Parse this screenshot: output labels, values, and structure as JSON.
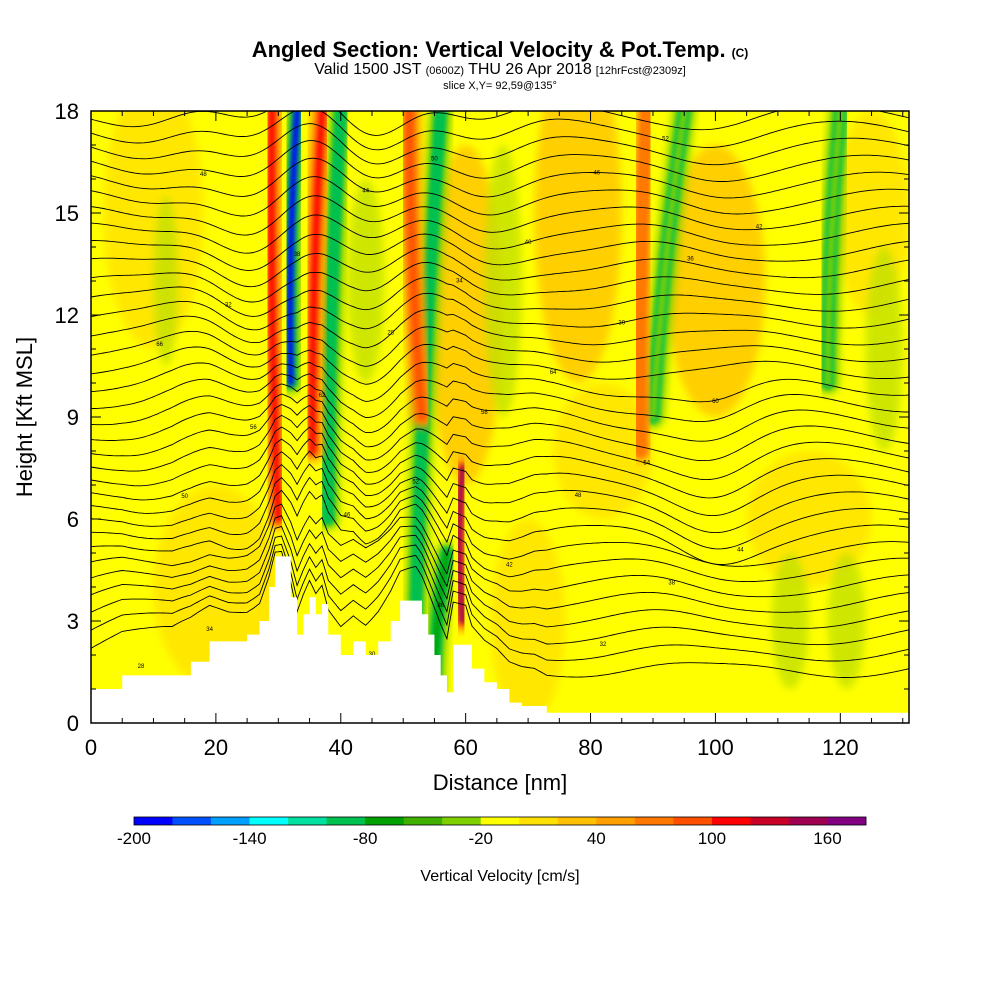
{
  "header": {
    "title": "Angled Section: Vertical Velocity & Pot.Temp.",
    "title_suffix": "(C)",
    "valid_prefix": "Valid 1500 JST",
    "valid_zulu": "(0600Z)",
    "valid_date": "THU 26 Apr 2018",
    "forecast_tag": "[12hrFcst@2309z]",
    "slice_info": "slice X,Y= 92,59@135°"
  },
  "chart_data": {
    "type": "heatmap",
    "title": "Angled Section: Vertical Velocity & Pot.Temp.",
    "xlabel": "Distance [nm]",
    "ylabel": "Height [Kft MSL]",
    "xlim": [
      0,
      131
    ],
    "ylim": [
      0,
      18
    ],
    "x_ticks": [
      0,
      20,
      40,
      60,
      80,
      100,
      120
    ],
    "y_ticks": [
      0,
      3,
      6,
      9,
      12,
      15,
      18
    ],
    "grid": false,
    "background_field": "yellow (~0 cm/s)",
    "colorbar": {
      "label": "Vertical Velocity [cm/s]",
      "min": -200,
      "max": 180,
      "step": 20,
      "tick_labels": [
        -200,
        -140,
        -80,
        -20,
        40,
        100,
        160
      ],
      "colors": [
        "#0000ff",
        "#0050ff",
        "#00a0ff",
        "#00ffff",
        "#00e0a0",
        "#00c050",
        "#00a000",
        "#40b000",
        "#80d000",
        "#ffff00",
        "#ffe000",
        "#ffc000",
        "#ffa000",
        "#ff7800",
        "#ff5000",
        "#ff0000",
        "#c80028",
        "#a00050",
        "#800080"
      ]
    },
    "updraft_bands": [
      {
        "x_base": 30,
        "x_top": 29,
        "h_base": 6,
        "h_top": 18,
        "value": 100
      },
      {
        "x_base": 35.5,
        "x_top": 37,
        "h_base": 8,
        "h_top": 18,
        "value": 100
      },
      {
        "x_base": 53,
        "x_top": 51,
        "h_base": 9,
        "h_top": 18,
        "value": 80
      },
      {
        "x_base": 59.5,
        "x_top": 59.5,
        "h_base": 3,
        "h_top": 7.5,
        "value": 140
      },
      {
        "x_base": 88,
        "x_top": 89,
        "h_base": 8,
        "h_top": 18,
        "value": 60
      }
    ],
    "downdraft_bands": [
      {
        "x_base": 32,
        "x_top": 33,
        "h_base": 10,
        "h_top": 18,
        "value": -200
      },
      {
        "x_base": 38,
        "x_top": 40,
        "h_base": 6,
        "h_top": 18,
        "value": -100
      },
      {
        "x_base": 52,
        "x_top": 56,
        "h_base": 3,
        "h_top": 18,
        "value": -100
      },
      {
        "x_base": 55,
        "x_top": 57,
        "h_base": 1,
        "h_top": 5,
        "value": -80
      },
      {
        "x_base": 90,
        "x_top": 95,
        "h_base": 9,
        "h_top": 18,
        "value": -40
      },
      {
        "x_base": 118,
        "x_top": 120,
        "h_base": 10,
        "h_top": 18,
        "value": -40
      }
    ],
    "terrain_profile": {
      "x": [
        0,
        5,
        10,
        13,
        16,
        19,
        22,
        25,
        27,
        28.5,
        29.5,
        30.5,
        32,
        33,
        34,
        35,
        36,
        37,
        38,
        40,
        42,
        44,
        46,
        48,
        49.5,
        51,
        52,
        53,
        54,
        55,
        56,
        57,
        58,
        59,
        60,
        61,
        63,
        65,
        67,
        69,
        71,
        73,
        75,
        131
      ],
      "h": [
        1,
        1.4,
        1.4,
        1.4,
        1.8,
        2.4,
        2.4,
        2.6,
        3.0,
        4.0,
        4.9,
        4.9,
        3.7,
        2.6,
        3.2,
        3.7,
        3.2,
        3.5,
        2.6,
        2.0,
        2.4,
        2.0,
        2.4,
        3.0,
        3.6,
        3.6,
        3.6,
        3.2,
        2.6,
        2.0,
        1.4,
        0.9,
        2.3,
        2.3,
        2.3,
        1.6,
        1.2,
        1.0,
        0.6,
        0.5,
        0.5,
        0.3,
        0.3,
        0.3
      ]
    },
    "potential_temperature_contours": {
      "levels_count": 34,
      "labels_shown": [
        "28",
        "30",
        "32",
        "34",
        "36",
        "38",
        "40",
        "42",
        "44",
        "46",
        "48",
        "50",
        "52",
        "54",
        "56",
        "58",
        "60",
        "62",
        "64",
        "66"
      ]
    }
  }
}
